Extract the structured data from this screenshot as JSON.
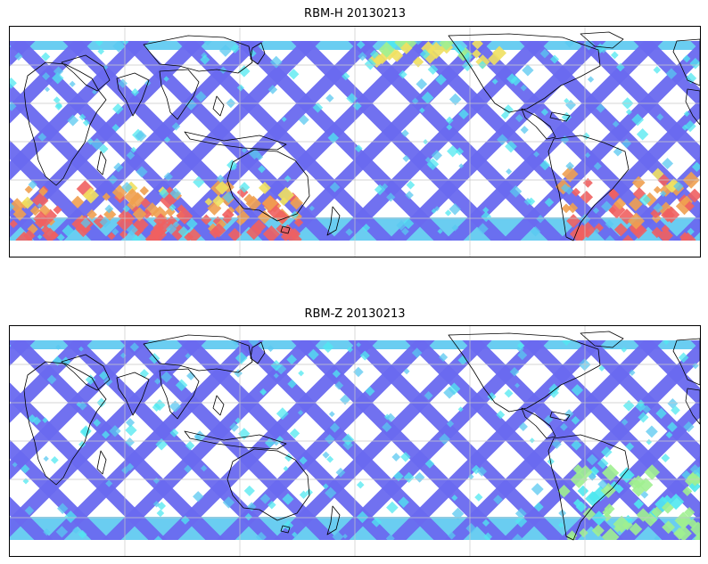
{
  "figure": {
    "panels": [
      {
        "id": "rbm-h",
        "title": "RBM-H 20130213",
        "colormap": "jet",
        "hotspots": [
          {
            "region": "southern-indian-ocean",
            "level": "high"
          },
          {
            "region": "south-atlantic",
            "level": "high"
          },
          {
            "region": "north-pacific",
            "level": "medium"
          }
        ]
      },
      {
        "id": "rbm-z",
        "title": "RBM-Z 20130213",
        "colormap": "jet",
        "hotspots": [
          {
            "region": "south-atlantic",
            "level": "low-medium"
          }
        ]
      }
    ],
    "colors": {
      "swath_low": "#6a6af0",
      "swath_mid": "#5ac8f0",
      "swath_cyan": "#50e8f0",
      "swath_green": "#a0f090",
      "swath_yellow": "#f0e060",
      "swath_orange": "#f0a050",
      "swath_red": "#f06060",
      "coastline": "#000000",
      "gridline": "#c8c8c8"
    }
  }
}
